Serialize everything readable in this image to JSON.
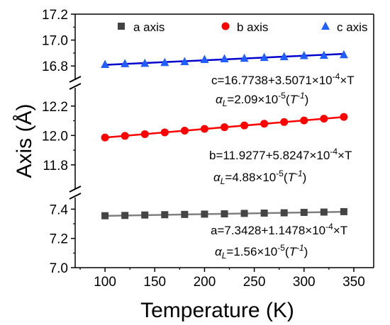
{
  "chart_data": {
    "type": "scatter",
    "xlabel": "Temperature (K)",
    "ylabel": "Axis (Å)",
    "xlim": [
      70,
      370
    ],
    "xticks": [
      100,
      150,
      200,
      250,
      300,
      350
    ],
    "broken_y_axis": true,
    "legend_position": "top",
    "panels": [
      {
        "name": "c",
        "ylim": [
          16.73,
          17.2
        ],
        "yticks": [
          16.8,
          17.0,
          17.2
        ]
      },
      {
        "name": "b",
        "ylim": [
          11.65,
          12.3
        ],
        "yticks": [
          11.8,
          12.0,
          12.2
        ]
      },
      {
        "name": "a",
        "ylim": [
          7.0,
          7.46
        ],
        "yticks": [
          7.0,
          7.2,
          7.4
        ]
      }
    ],
    "x": [
      100,
      120,
      140,
      160,
      180,
      200,
      220,
      240,
      260,
      280,
      300,
      320,
      340
    ],
    "series": [
      {
        "name": "a axis",
        "panel": "a",
        "marker": "square",
        "marker_color": "#444444",
        "line_color": "#808080",
        "values": [
          7.355,
          7.357,
          7.36,
          7.362,
          7.364,
          7.366,
          7.368,
          7.371,
          7.373,
          7.375,
          7.378,
          7.38,
          7.383
        ],
        "fit": {
          "intercept": 7.3428,
          "slope": 0.00011478
        },
        "fit_label": "a=7.3428+1.1478×10",
        "fit_label_exp": "-4",
        "fit_label_tail": "×T",
        "alpha_label": "=1.56×10",
        "alpha_exp": "-5",
        "alpha_unit": "T"
      },
      {
        "name": "b axis",
        "panel": "b",
        "marker": "circle",
        "marker_color": "#ff0000",
        "line_color": "#ff0000",
        "values": [
          11.986,
          11.997,
          12.009,
          12.021,
          12.033,
          12.045,
          12.056,
          12.068,
          12.08,
          12.091,
          12.102,
          12.114,
          12.126
        ],
        "fit": {
          "intercept": 11.9277,
          "slope": 0.00058247
        },
        "fit_label": "b=11.9277+5.8247×10",
        "fit_label_exp": "-4",
        "fit_label_tail": "×T",
        "alpha_label": "=4.88×10",
        "alpha_exp": "-5",
        "alpha_unit": "T"
      },
      {
        "name": "c axis",
        "panel": "c",
        "marker": "triangle",
        "marker_color": "#1f5fff",
        "line_color": "#0000cc",
        "values": [
          16.812,
          16.818,
          16.821,
          16.827,
          16.834,
          16.85,
          16.856,
          16.86,
          16.866,
          16.872,
          16.88,
          16.882,
          16.887
        ],
        "fit": {
          "intercept": 16.7738,
          "slope": 0.00035071
        },
        "fit_label": "c=16.7738+3.5071×10",
        "fit_label_exp": "-4",
        "fit_label_tail": "×T",
        "alpha_label": "=2.09×10",
        "alpha_exp": "-5",
        "alpha_unit": "T"
      }
    ]
  }
}
